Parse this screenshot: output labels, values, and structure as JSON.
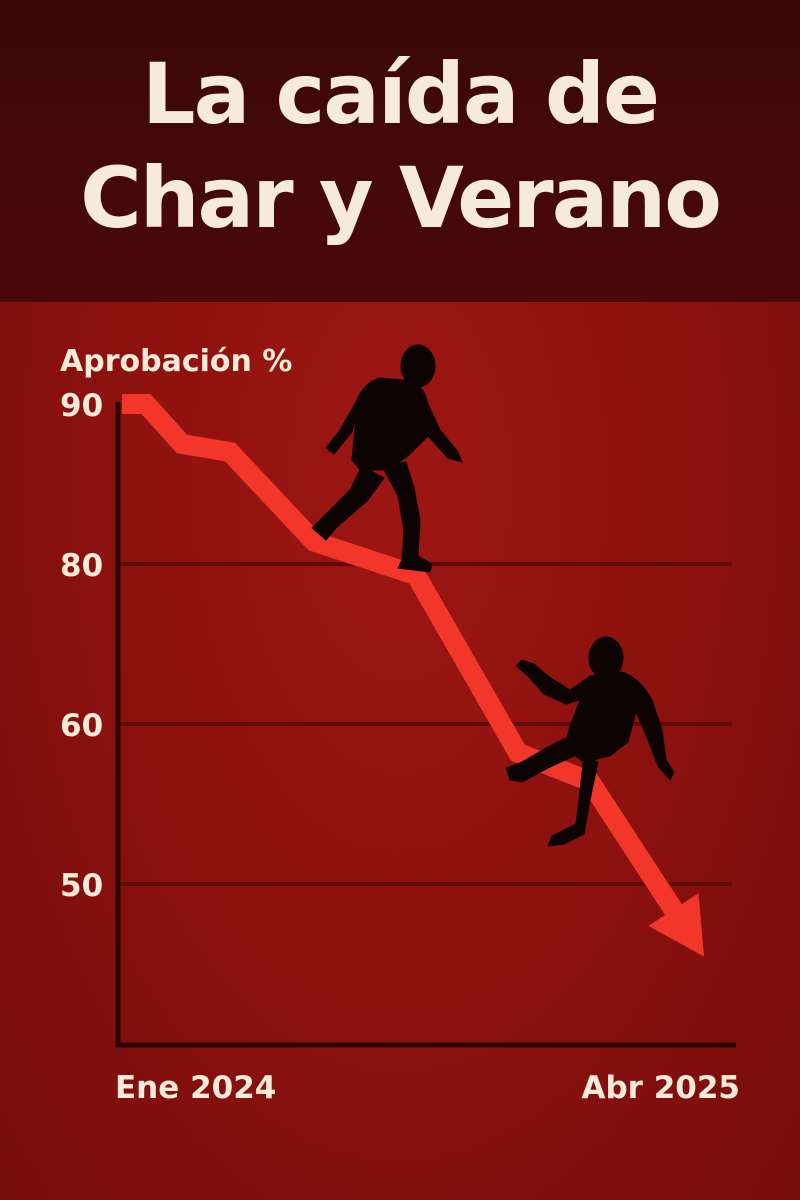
{
  "title_lines": [
    "La caída de",
    "Char y Verano"
  ],
  "colors": {
    "background": "#8b1210",
    "header": "#3f0807",
    "text": "#f6ead8",
    "line": "#f2362a",
    "axis": "#2a0504",
    "gridline": "#5e0b09",
    "silhouette": "#0d0302"
  },
  "chart_data": {
    "type": "line",
    "title": "",
    "ylabel": "Aprobación %",
    "xlabel": "",
    "x_tick_labels": [
      "Ene 2024",
      "Abr 2025"
    ],
    "y_ticks": [
      90,
      80,
      60,
      50
    ],
    "ylim": [
      40,
      90
    ],
    "grid": true,
    "series": [
      {
        "x": [
          0,
          0.04,
          0.1,
          0.18,
          0.32,
          0.49,
          0.66,
          0.78,
          0.97
        ],
        "y": [
          90,
          90,
          87.5,
          87,
          81.4,
          78.6,
          58.2,
          56.4,
          45.5
        ]
      }
    ],
    "end_marker": "arrow",
    "illustrations": [
      "walking-man-silhouette",
      "falling-man-silhouette"
    ]
  }
}
